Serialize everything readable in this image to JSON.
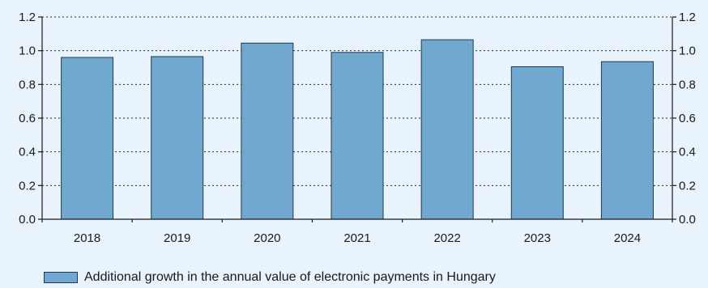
{
  "chart_data": {
    "type": "bar",
    "categories": [
      "2018",
      "2019",
      "2020",
      "2021",
      "2022",
      "2023",
      "2024"
    ],
    "series": [
      {
        "name": "Additional growth in the annual value of electronic payments in Hungary",
        "values": [
          0.96,
          0.965,
          1.045,
          0.99,
          1.065,
          0.905,
          0.935
        ]
      }
    ],
    "ylim": [
      0,
      1.2
    ],
    "yticks": [
      "0.0",
      "0.2",
      "0.4",
      "0.6",
      "0.8",
      "1.0",
      "1.2"
    ],
    "secondary_yticks": [
      "0.0",
      "0.2",
      "0.4",
      "0.6",
      "0.8",
      "1.0",
      "1.2"
    ],
    "grid": "horizontal dotted",
    "legend_position": "bottom-left",
    "colors": {
      "bar": "#70a8d0",
      "bar_edge": "#1f3a52",
      "background": "#e8f3fb",
      "axis": "#1a1a1a"
    }
  },
  "legend": {
    "label": "Additional growth in the annual value of electronic payments in Hungary"
  }
}
